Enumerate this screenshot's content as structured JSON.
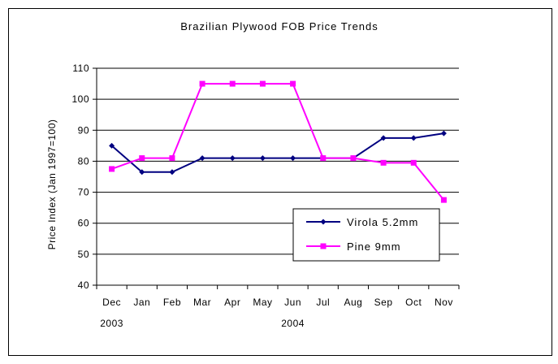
{
  "chart_data": {
    "type": "line",
    "title": "Brazilian Plywood FOB Price Trends",
    "ylabel": "Price Index (Jan 1997=100)",
    "xlabel": "",
    "categories": [
      "Dec",
      "Jan",
      "Feb",
      "Mar",
      "Apr",
      "May",
      "Jun",
      "Jul",
      "Aug",
      "Sep",
      "Oct",
      "Nov"
    ],
    "year_labels": [
      {
        "label": "2003",
        "category": "Dec"
      },
      {
        "label": "2004",
        "category": "Jun"
      }
    ],
    "ylim": [
      40,
      110
    ],
    "yticks": [
      40,
      50,
      60,
      70,
      80,
      90,
      100,
      110
    ],
    "grid": true,
    "legend_position": "bottom-right",
    "series": [
      {
        "name": "Virola 5.2mm",
        "color": "#000080",
        "marker": "diamond",
        "values": [
          85,
          76.5,
          76.5,
          81,
          81,
          81,
          81,
          81,
          81,
          87.5,
          87.5,
          89
        ]
      },
      {
        "name": "Pine 9mm",
        "color": "#ff00ff",
        "marker": "square",
        "values": [
          77.5,
          81,
          81,
          105,
          105,
          105,
          105,
          81,
          81,
          79.5,
          79.5,
          67.5
        ]
      }
    ]
  }
}
